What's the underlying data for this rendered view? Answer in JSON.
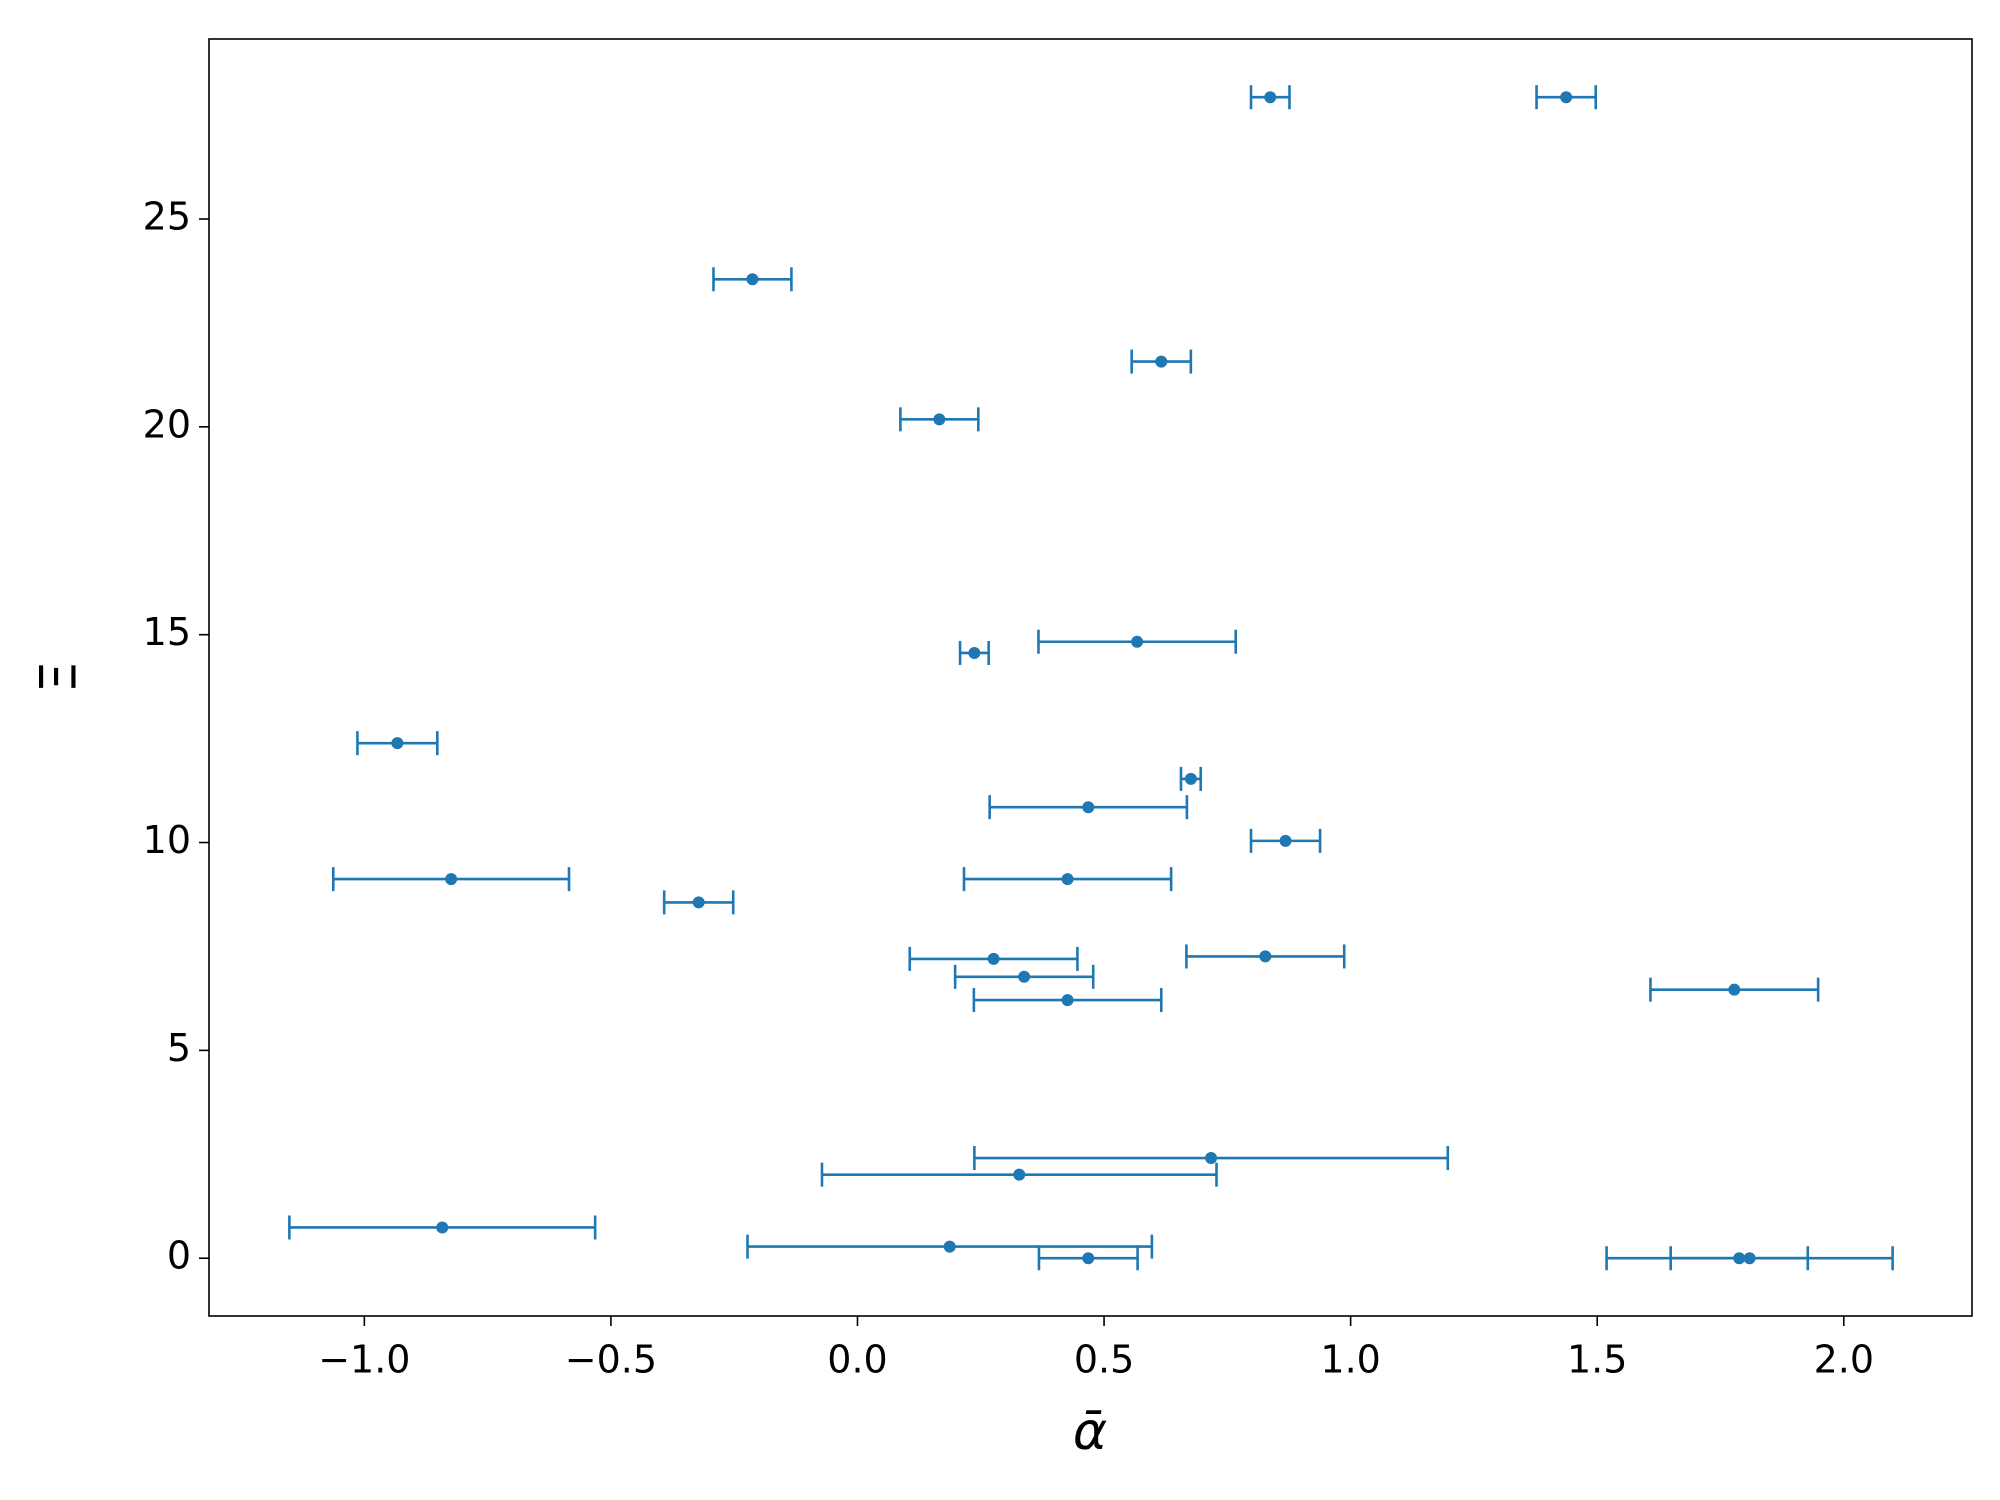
{
  "chart_data": {
    "type": "errorbar",
    "x_label": "ᾱ",
    "y_label": "Ξ",
    "xlim": [
      -1.315,
      2.26
    ],
    "ylim": [
      -1.39,
      29.33
    ],
    "xticks": [
      {
        "value": -1,
        "label": "−1.0"
      },
      {
        "value": -0.5,
        "label": "−0.5"
      },
      {
        "value": 0,
        "label": "0.0"
      },
      0.5,
      {
        "value": 1,
        "label": "1.0"
      },
      1.5,
      {
        "value": 2,
        "label": "2.0"
      }
    ],
    "yticks": [
      0,
      5,
      10,
      15,
      20,
      25
    ],
    "series": [
      {
        "color": "#1f77b4",
        "x": [
          0.837,
          1.437,
          -0.213,
          0.616,
          0.166,
          0.567,
          0.237,
          -0.933,
          0.676,
          0.468,
          0.868,
          -0.824,
          0.426,
          -0.322,
          0.827,
          0.276,
          0.338,
          1.778,
          0.426,
          0.717,
          0.328,
          -0.842,
          0.187,
          0.468,
          1.788,
          1.809
        ],
        "values": [
          27.93,
          27.93,
          23.55,
          21.57,
          20.18,
          14.83,
          14.56,
          12.39,
          11.53,
          10.85,
          10.04,
          9.12,
          9.12,
          8.56,
          7.26,
          7.2,
          6.77,
          6.46,
          6.21,
          2.41,
          2.01,
          0.74,
          0.28,
          0,
          0,
          0
        ],
        "xerr": [
          0.039,
          0.06,
          0.079,
          0.06,
          0.079,
          0.2,
          0.029,
          0.081,
          0.02,
          0.2,
          0.07,
          0.239,
          0.21,
          0.07,
          0.16,
          0.17,
          0.14,
          0.17,
          0.19,
          0.48,
          0.4,
          0.31,
          0.41,
          0.1,
          0.139,
          0.29
        ]
      }
    ]
  }
}
